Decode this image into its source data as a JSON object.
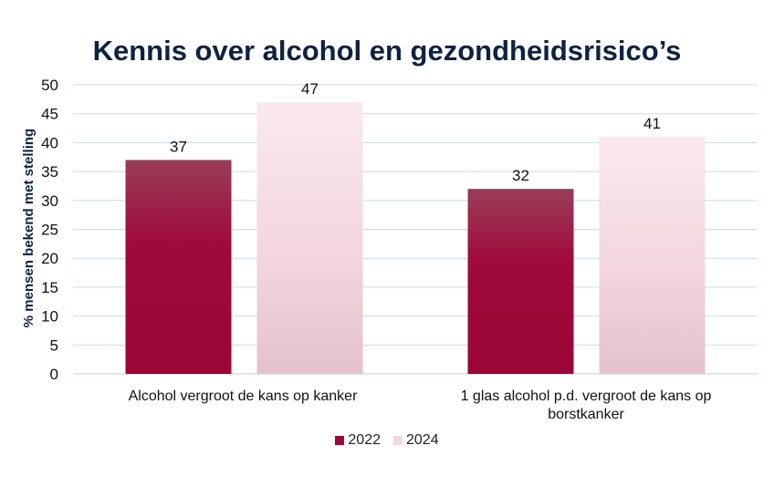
{
  "chart_data": {
    "type": "bar",
    "title": "Kennis over alcohol en gezondheidsrisico’s",
    "ylabel": "% mensen bekend met stelling",
    "xlabel": "",
    "ylim": [
      0,
      50
    ],
    "yticks": [
      0,
      5,
      10,
      15,
      20,
      25,
      30,
      35,
      40,
      45,
      50
    ],
    "grid": true,
    "legend_position": "bottom",
    "categories": [
      [
        "Alcohol vergroot de kans op kanker"
      ],
      [
        "1 glas alcohol p.d. vergroot de kans op",
        "borstkanker"
      ]
    ],
    "series": [
      {
        "name": "2022",
        "values": [
          37,
          32
        ],
        "color": "#9e0839",
        "color_top": "#9a3a55"
      },
      {
        "name": "2024",
        "values": [
          47,
          41
        ],
        "color": "#f7dfe5",
        "color_bottom": "#e6c3cc"
      }
    ]
  }
}
